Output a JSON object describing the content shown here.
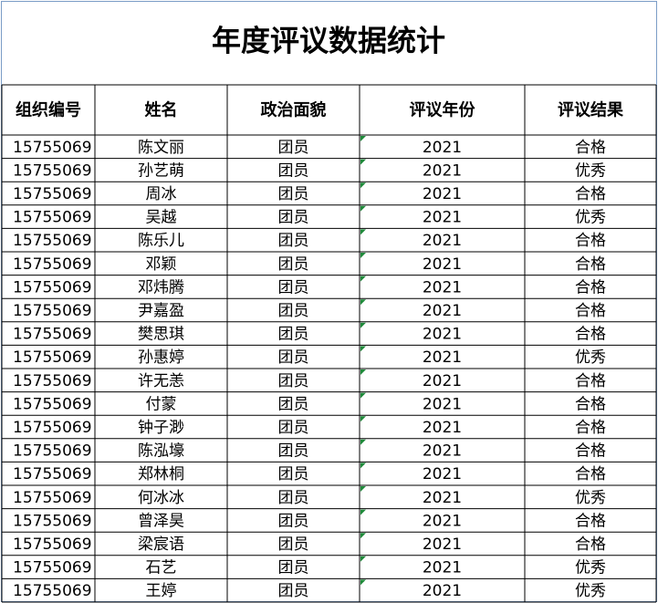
{
  "title": "年度评议数据统计",
  "table": {
    "header": [
      "组织编号",
      "姓名",
      "政治面貌",
      "评议年份",
      "评议结果"
    ],
    "rows": [
      [
        "15755069",
        "陈文丽",
        "团员",
        "2021",
        "合格"
      ],
      [
        "15755069",
        "孙艺萌",
        "团员",
        "2021",
        "优秀"
      ],
      [
        "15755069",
        "周冰",
        "团员",
        "2021",
        "合格"
      ],
      [
        "15755069",
        "吴越",
        "团员",
        "2021",
        "优秀"
      ],
      [
        "15755069",
        "陈乐儿",
        "团员",
        "2021",
        "合格"
      ],
      [
        "15755069",
        "邓颖",
        "团员",
        "2021",
        "合格"
      ],
      [
        "15755069",
        "邓炜腾",
        "团员",
        "2021",
        "合格"
      ],
      [
        "15755069",
        "尹嘉盈",
        "团员",
        "2021",
        "合格"
      ],
      [
        "15755069",
        "樊思琪",
        "团员",
        "2021",
        "合格"
      ],
      [
        "15755069",
        "孙惠婷",
        "团员",
        "2021",
        "优秀"
      ],
      [
        "15755069",
        "许无恙",
        "团员",
        "2021",
        "合格"
      ],
      [
        "15755069",
        "付蒙",
        "团员",
        "2021",
        "合格"
      ],
      [
        "15755069",
        "钟子渺",
        "团员",
        "2021",
        "合格"
      ],
      [
        "15755069",
        "陈泓壕",
        "团员",
        "2021",
        "合格"
      ],
      [
        "15755069",
        "郑林桐",
        "团员",
        "2021",
        "合格"
      ],
      [
        "15755069",
        "何冰冰",
        "团员",
        "2021",
        "优秀"
      ],
      [
        "15755069",
        "曾泽昊",
        "团员",
        "2021",
        "合格"
      ],
      [
        "15755069",
        "梁宸语",
        "团员",
        "2021",
        "合格"
      ],
      [
        "15755069",
        "石艺",
        "团员",
        "2021",
        "优秀"
      ],
      [
        "15755069",
        "王婷",
        "团员",
        "2021",
        "优秀"
      ]
    ]
  }
}
